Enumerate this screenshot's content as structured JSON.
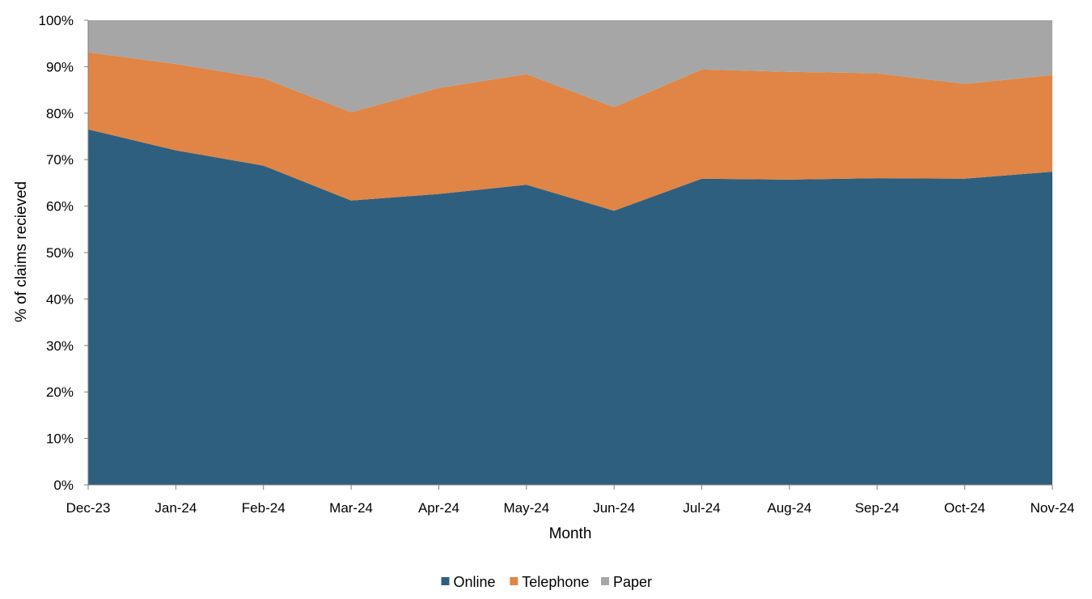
{
  "chart_data": {
    "type": "area",
    "stacked": true,
    "percent_scale": true,
    "title": "",
    "xlabel": "Month",
    "ylabel": "% of  claims recieved",
    "categories": [
      "Dec-23",
      "Jan-24",
      "Feb-24",
      "Mar-24",
      "Apr-24",
      "May-24",
      "Jun-24",
      "Jul-24",
      "Aug-24",
      "Sep-24",
      "Oct-24",
      "Nov-24"
    ],
    "ylim": [
      0,
      100
    ],
    "yticks": [
      0,
      10,
      20,
      30,
      40,
      50,
      60,
      70,
      80,
      90,
      100
    ],
    "ytick_labels": [
      "0%",
      "10%",
      "20%",
      "30%",
      "40%",
      "50%",
      "60%",
      "70%",
      "80%",
      "90%",
      "100%"
    ],
    "grid": false,
    "legend_position": "bottom",
    "series": [
      {
        "name": "Online",
        "color": "#2F5F7F",
        "values": [
          76.5,
          72.0,
          68.7,
          61.2,
          62.6,
          64.6,
          59.0,
          65.9,
          65.7,
          66.0,
          65.9,
          67.4
        ]
      },
      {
        "name": "Telephone",
        "color": "#E08545",
        "values": [
          16.6,
          18.6,
          18.8,
          19.0,
          22.8,
          23.8,
          22.3,
          23.5,
          23.2,
          22.6,
          20.4,
          20.8
        ]
      },
      {
        "name": "Paper",
        "color": "#A6A6A6",
        "values": [
          6.9,
          9.4,
          12.5,
          19.8,
          14.6,
          11.6,
          18.7,
          10.6,
          11.1,
          11.4,
          13.7,
          11.8
        ]
      }
    ]
  }
}
